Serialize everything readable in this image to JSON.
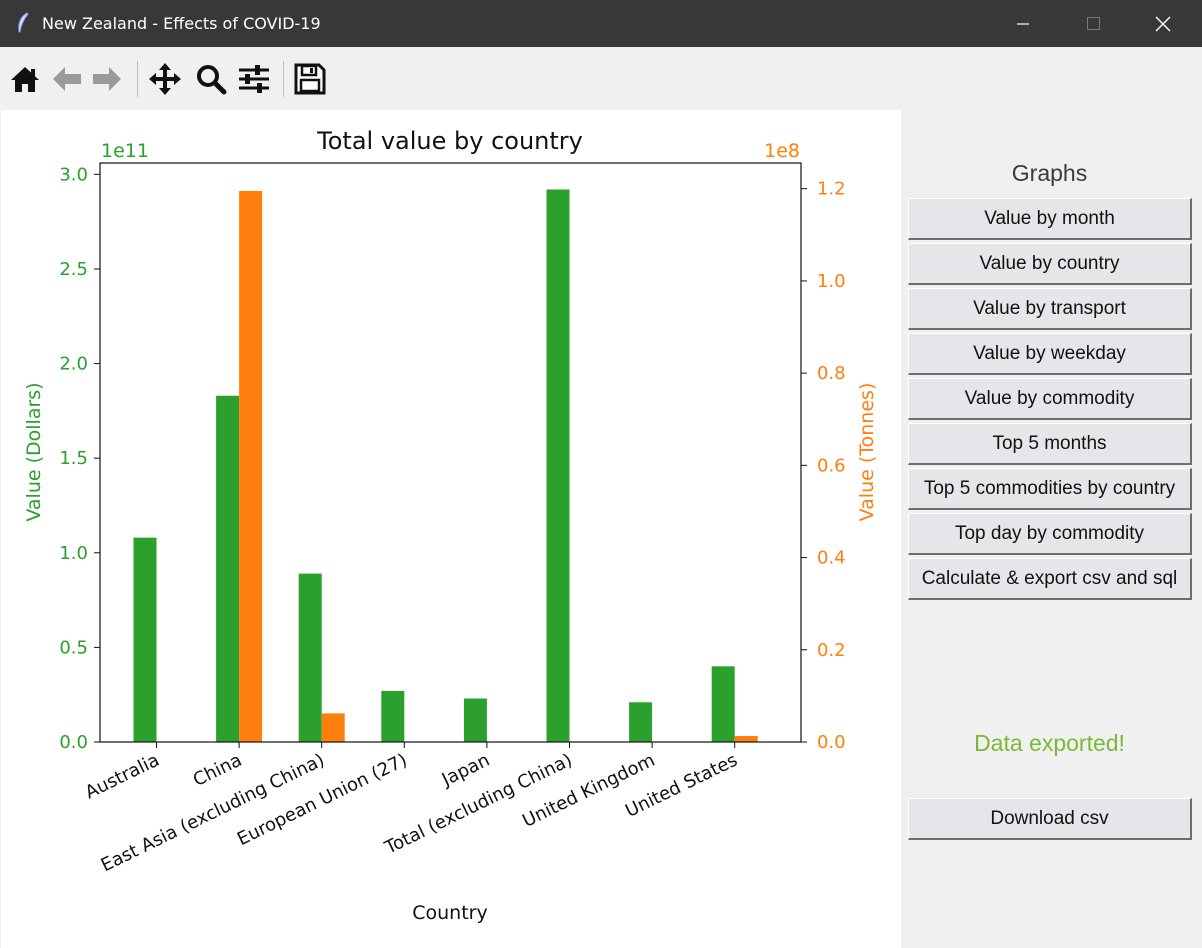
{
  "window": {
    "title": "New Zealand - Effects of COVID-19",
    "icon": "feather-icon",
    "controls": [
      "minimize-icon",
      "maximize-icon",
      "close-icon"
    ]
  },
  "toolbar": {
    "icons": [
      "home-icon",
      "back-arrow-icon",
      "forward-arrow-icon",
      "pan-icon",
      "zoom-icon",
      "configure-subplots-icon",
      "save-icon"
    ]
  },
  "sidebar": {
    "heading": "Graphs",
    "buttons": [
      "Value by month",
      "Value by country",
      "Value by transport",
      "Value by weekday",
      "Value by commodity",
      "Top 5 months",
      "Top 5 commodities by country",
      "Top day by commodity",
      "Calculate & export csv and sql"
    ],
    "status": "Data exported!",
    "status_color": "#7bb83a",
    "download_label": "Download csv"
  },
  "chart_data": {
    "type": "bar",
    "title": "Total value by country",
    "xlabel": "Country",
    "categories": [
      "Australia",
      "China",
      "East Asia (excluding China)",
      "European Union (27)",
      "Japan",
      "Total (excluding China)",
      "United Kingdom",
      "United States"
    ],
    "y_left": {
      "label": "Value (Dollars)",
      "offset_text": "1e11",
      "ylim": [
        0,
        3.06
      ],
      "ticks": [
        "0.0",
        "0.5",
        "1.0",
        "1.5",
        "2.0",
        "2.5",
        "3.0"
      ],
      "color": "#2ca02c"
    },
    "y_right": {
      "label": "Value (Tonnes)",
      "offset_text": "1e8",
      "ylim": [
        0,
        1.2557
      ],
      "ticks": [
        "0.0",
        "0.2",
        "0.4",
        "0.6",
        "0.8",
        "1.0",
        "1.2"
      ],
      "color": "#ff7f0e"
    },
    "series": [
      {
        "axis": "left",
        "color": "#2ca02c",
        "values": [
          1.08,
          1.83,
          0.89,
          0.27,
          0.23,
          2.92,
          0.21,
          0.4
        ]
      },
      {
        "axis": "right",
        "color": "#ff7f0e",
        "values": [
          0.0,
          1.195,
          0.062,
          0.0,
          0.0,
          0.0,
          0.0,
          0.013
        ]
      }
    ],
    "grid": false
  }
}
